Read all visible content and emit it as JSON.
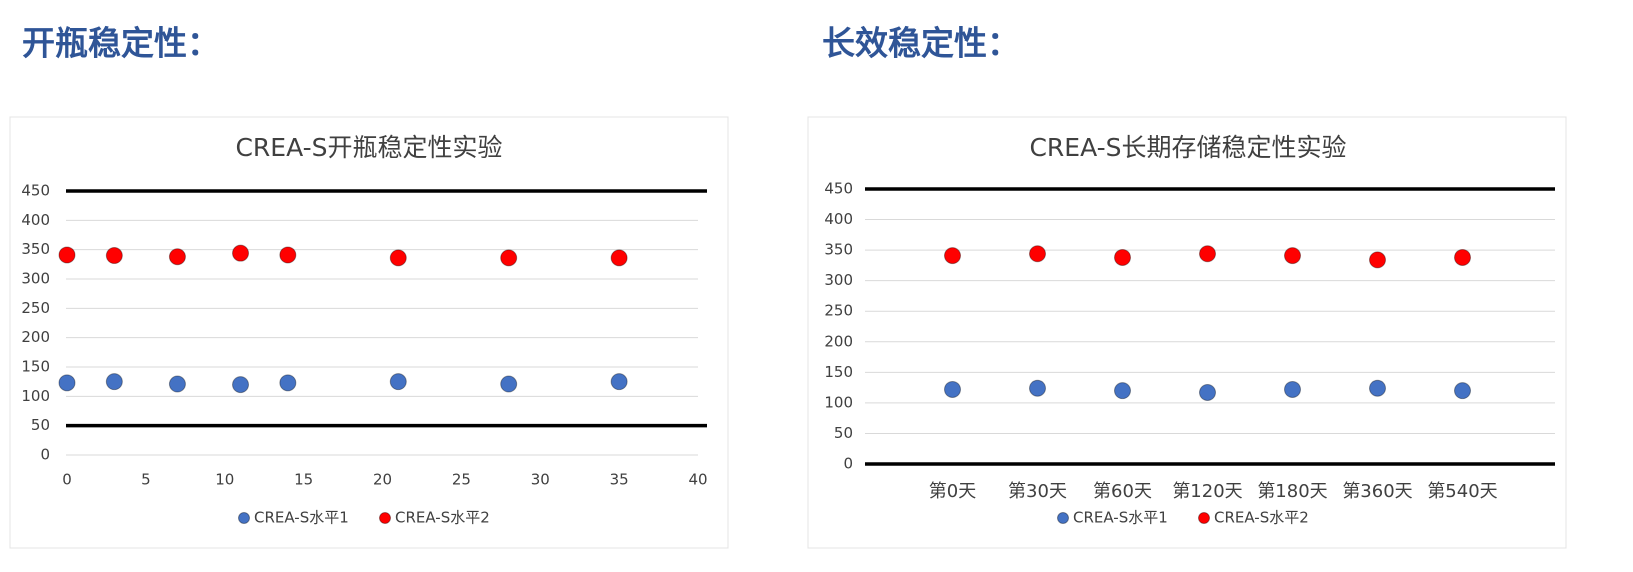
{
  "headings": [
    "开瓶稳定性：",
    "长效稳定性："
  ],
  "chart_data": [
    {
      "type": "scatter",
      "title": "CREA-S开瓶稳定性实验",
      "x": [
        0,
        3,
        7,
        11,
        14,
        21,
        28,
        35
      ],
      "series": [
        {
          "name": "CREA-S水平1",
          "color": "#4472c4",
          "values": [
            123,
            125,
            121,
            120,
            123,
            125,
            121,
            125
          ]
        },
        {
          "name": "CREA-S水平2",
          "color": "#ff0000",
          "values": [
            341,
            340,
            338,
            344,
            341,
            336,
            336,
            336
          ]
        }
      ],
      "xlim": [
        0,
        40
      ],
      "xticks": [
        0,
        5,
        10,
        15,
        20,
        25,
        30,
        35,
        40
      ],
      "ylim": [
        0,
        450
      ],
      "yticks": [
        0,
        50,
        100,
        150,
        200,
        250,
        300,
        350,
        400,
        450
      ],
      "limit_lines": [
        50,
        450
      ],
      "grid": true,
      "legend": "bottom"
    },
    {
      "type": "category-scatter",
      "title": "CREA-S长期存储稳定性实验",
      "categories": [
        "第0天",
        "第30天",
        "第60天",
        "第120天",
        "第180天",
        "第360天",
        "第540天"
      ],
      "series": [
        {
          "name": "CREA-S水平1",
          "color": "#4472c4",
          "values": [
            122,
            124,
            120,
            117,
            122,
            124,
            120
          ]
        },
        {
          "name": "CREA-S水平2",
          "color": "#ff0000",
          "values": [
            341,
            344,
            338,
            344,
            341,
            334,
            338
          ]
        }
      ],
      "ylim": [
        0,
        450
      ],
      "yticks": [
        0,
        50,
        100,
        150,
        200,
        250,
        300,
        350,
        400,
        450
      ],
      "limit_lines": [
        0,
        450
      ],
      "grid": true,
      "legend": "bottom"
    }
  ]
}
